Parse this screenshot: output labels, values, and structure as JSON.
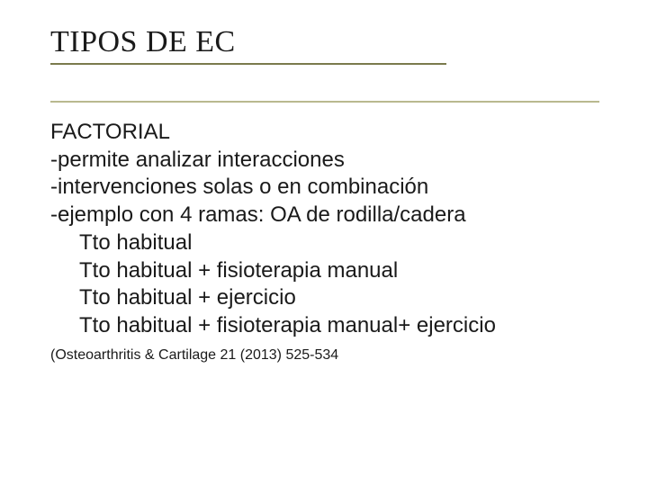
{
  "title": "TIPOS DE EC",
  "rule_colors": {
    "top": "#7a7a4d",
    "bottom": "#b9b98f"
  },
  "body": {
    "heading": "FACTORIAL",
    "points": [
      "-permite analizar interacciones",
      "-intervenciones solas o en combinación",
      "-ejemplo con 4 ramas: OA de rodilla/cadera"
    ],
    "sublist": [
      "Tto habitual",
      "Tto habitual + fisioterapia manual",
      "Tto habitual + ejercicio",
      "Tto habitual + fisioterapia manual+ ejercicio"
    ]
  },
  "reference": "(Osteoarthritis & Cartilage 21 (2013) 525-534",
  "typography": {
    "title_font": "Times New Roman",
    "title_size_pt": 28,
    "body_font": "Arial",
    "body_size_pt": 20,
    "ref_size_pt": 14,
    "text_color": "#1a1a1a",
    "background_color": "#ffffff"
  }
}
